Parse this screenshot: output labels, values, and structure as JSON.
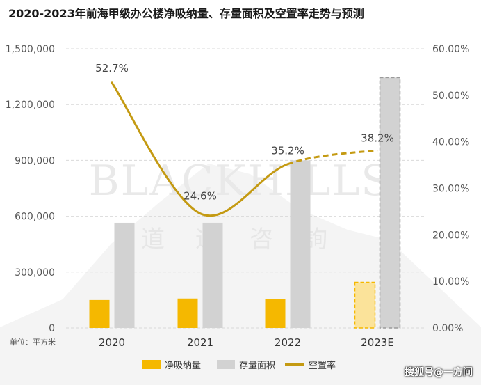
{
  "title": "2020-2023年前海甲级办公楼净吸纳量、存量面积及空置率走势与预测",
  "unit_note": "单位：平方米",
  "watermark": {
    "brand": "BLACKHILLS",
    "subtitle": [
      "道",
      "远",
      "咨",
      "詢"
    ]
  },
  "credit": "搜狐号@一方间",
  "colors": {
    "net_absorption": "#F5B800",
    "net_absorption_forecast": "#FBE39A",
    "stock": "#D2D2D2",
    "vacancy": "#C49A12",
    "grid": "#D9D9D9",
    "axis_text": "#555555"
  },
  "chart_data": {
    "type": "bar",
    "categories": [
      "2020",
      "2021",
      "2022",
      "2023E"
    ],
    "forecast_index": 3,
    "series": [
      {
        "name": "净吸纳量",
        "kind": "bar",
        "axis": "left",
        "values": [
          150000,
          158000,
          155000,
          245000
        ]
      },
      {
        "name": "存量面积",
        "kind": "bar",
        "axis": "left",
        "values": [
          565000,
          565000,
          900000,
          1345000
        ]
      },
      {
        "name": "空置率",
        "kind": "line",
        "axis": "right",
        "values": [
          52.7,
          24.6,
          35.2,
          38.2
        ],
        "labels": [
          "52.7%",
          "24.6%",
          "35.2%",
          "38.2%"
        ]
      }
    ],
    "y_left": {
      "min": 0,
      "max": 1500000,
      "ticks": [
        0,
        300000,
        600000,
        900000,
        1200000,
        1500000
      ],
      "tick_labels": [
        "0",
        "300,000",
        "600,000",
        "900,000",
        "1,200,000",
        "1,500,000"
      ]
    },
    "y_right": {
      "min": 0,
      "max": 60,
      "ticks": [
        0,
        10,
        20,
        30,
        40,
        50,
        60
      ],
      "tick_labels": [
        "0.00%",
        "10.00%",
        "20.00%",
        "30.00%",
        "40.00%",
        "50.00%",
        "60.00%"
      ]
    },
    "grid": true,
    "legend_position": "bottom"
  }
}
